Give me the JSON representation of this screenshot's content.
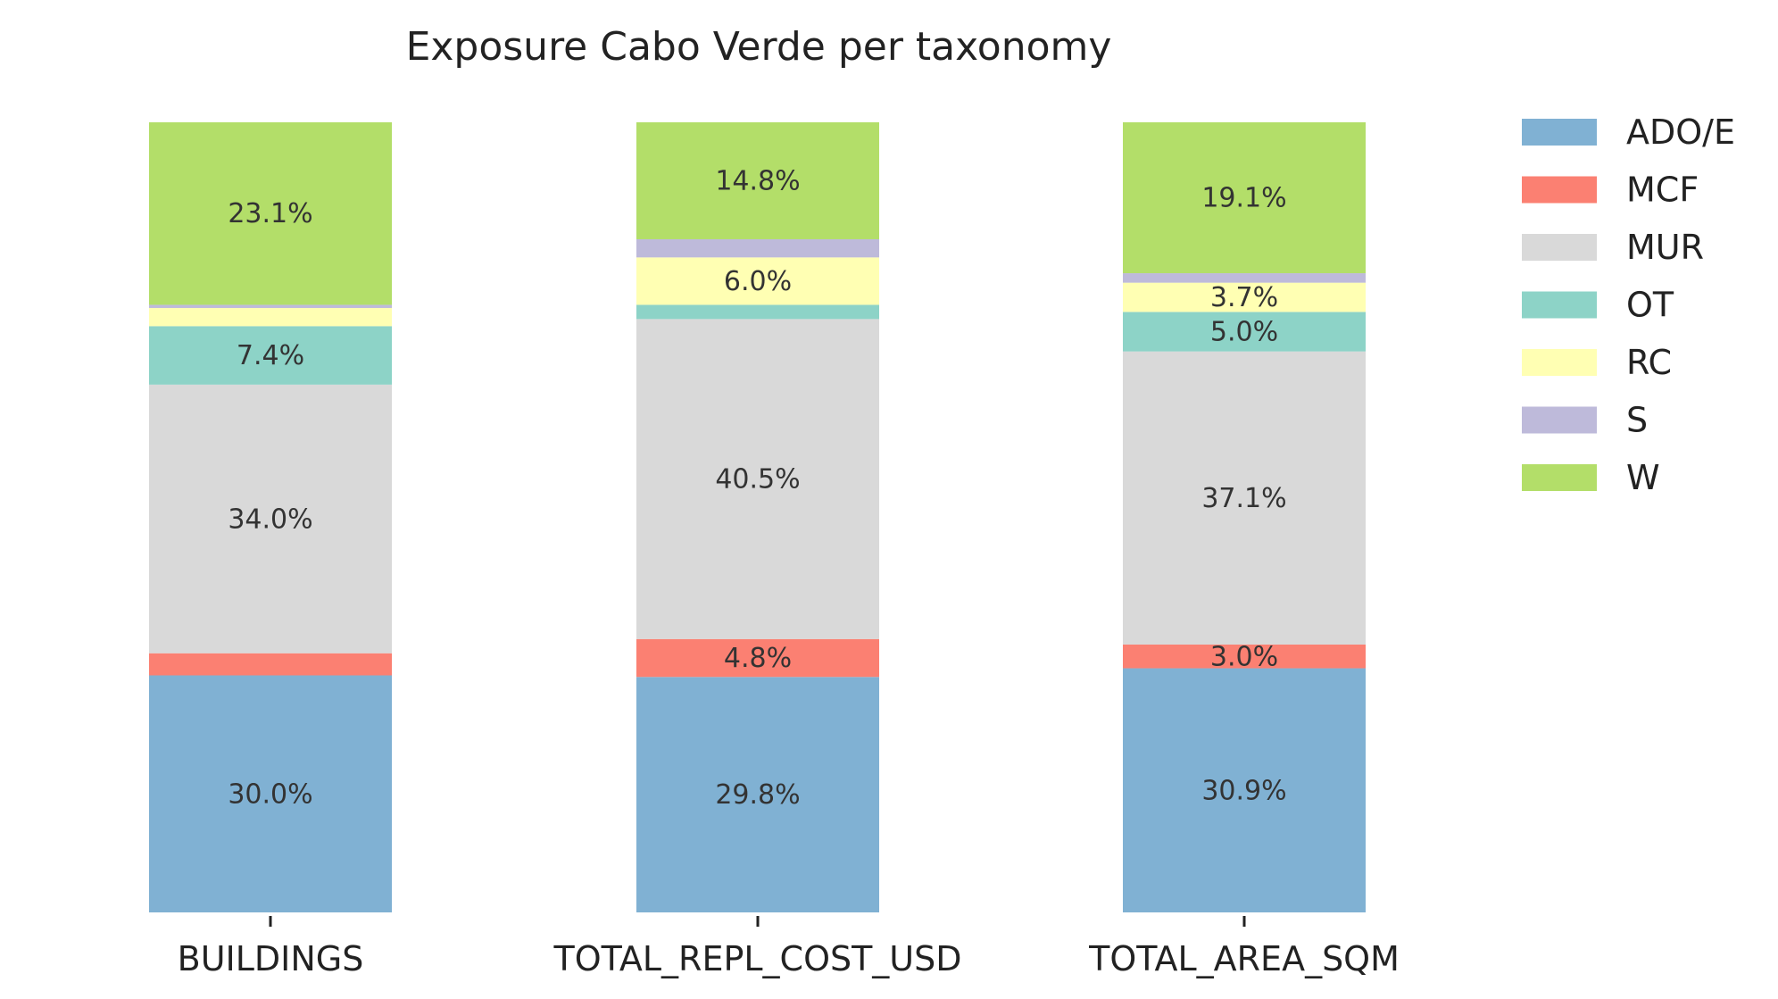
{
  "chart_data": {
    "type": "bar",
    "stacked": true,
    "normalized": true,
    "title": "Exposure Cabo Verde per taxonomy",
    "xlabel": "",
    "ylabel": "",
    "ylim": [
      0,
      100
    ],
    "grid": false,
    "legend_position": "top-right, outside plot",
    "categories": [
      "BUILDINGS",
      "TOTAL_REPL_COST_USD",
      "TOTAL_AREA_SQM"
    ],
    "series": [
      {
        "name": "ADO/E",
        "color": "#80b1d3",
        "values": [
          30.0,
          29.8,
          30.9
        ],
        "labels": [
          "30.0%",
          "29.8%",
          "30.9%"
        ]
      },
      {
        "name": "MCF",
        "color": "#fb8072",
        "values": [
          2.8,
          4.8,
          3.0
        ],
        "labels": [
          "",
          "4.8%",
          "3.0%"
        ]
      },
      {
        "name": "MUR",
        "color": "#d9d9d9",
        "values": [
          34.0,
          40.5,
          37.1
        ],
        "labels": [
          "34.0%",
          "40.5%",
          "37.1%"
        ]
      },
      {
        "name": "OT",
        "color": "#8dd3c7",
        "values": [
          7.4,
          1.8,
          5.0
        ],
        "labels": [
          "7.4%",
          "",
          "5.0%"
        ]
      },
      {
        "name": "RC",
        "color": "#ffffb3",
        "values": [
          2.3,
          6.0,
          3.7
        ],
        "labels": [
          "",
          "6.0%",
          "3.7%"
        ]
      },
      {
        "name": "S",
        "color": "#bebada",
        "values": [
          0.4,
          2.3,
          1.2
        ],
        "labels": [
          "",
          "",
          ""
        ]
      },
      {
        "name": "W",
        "color": "#b3de69",
        "values": [
          23.1,
          14.8,
          19.1
        ],
        "labels": [
          "23.1%",
          "14.8%",
          "19.1%"
        ]
      }
    ]
  }
}
